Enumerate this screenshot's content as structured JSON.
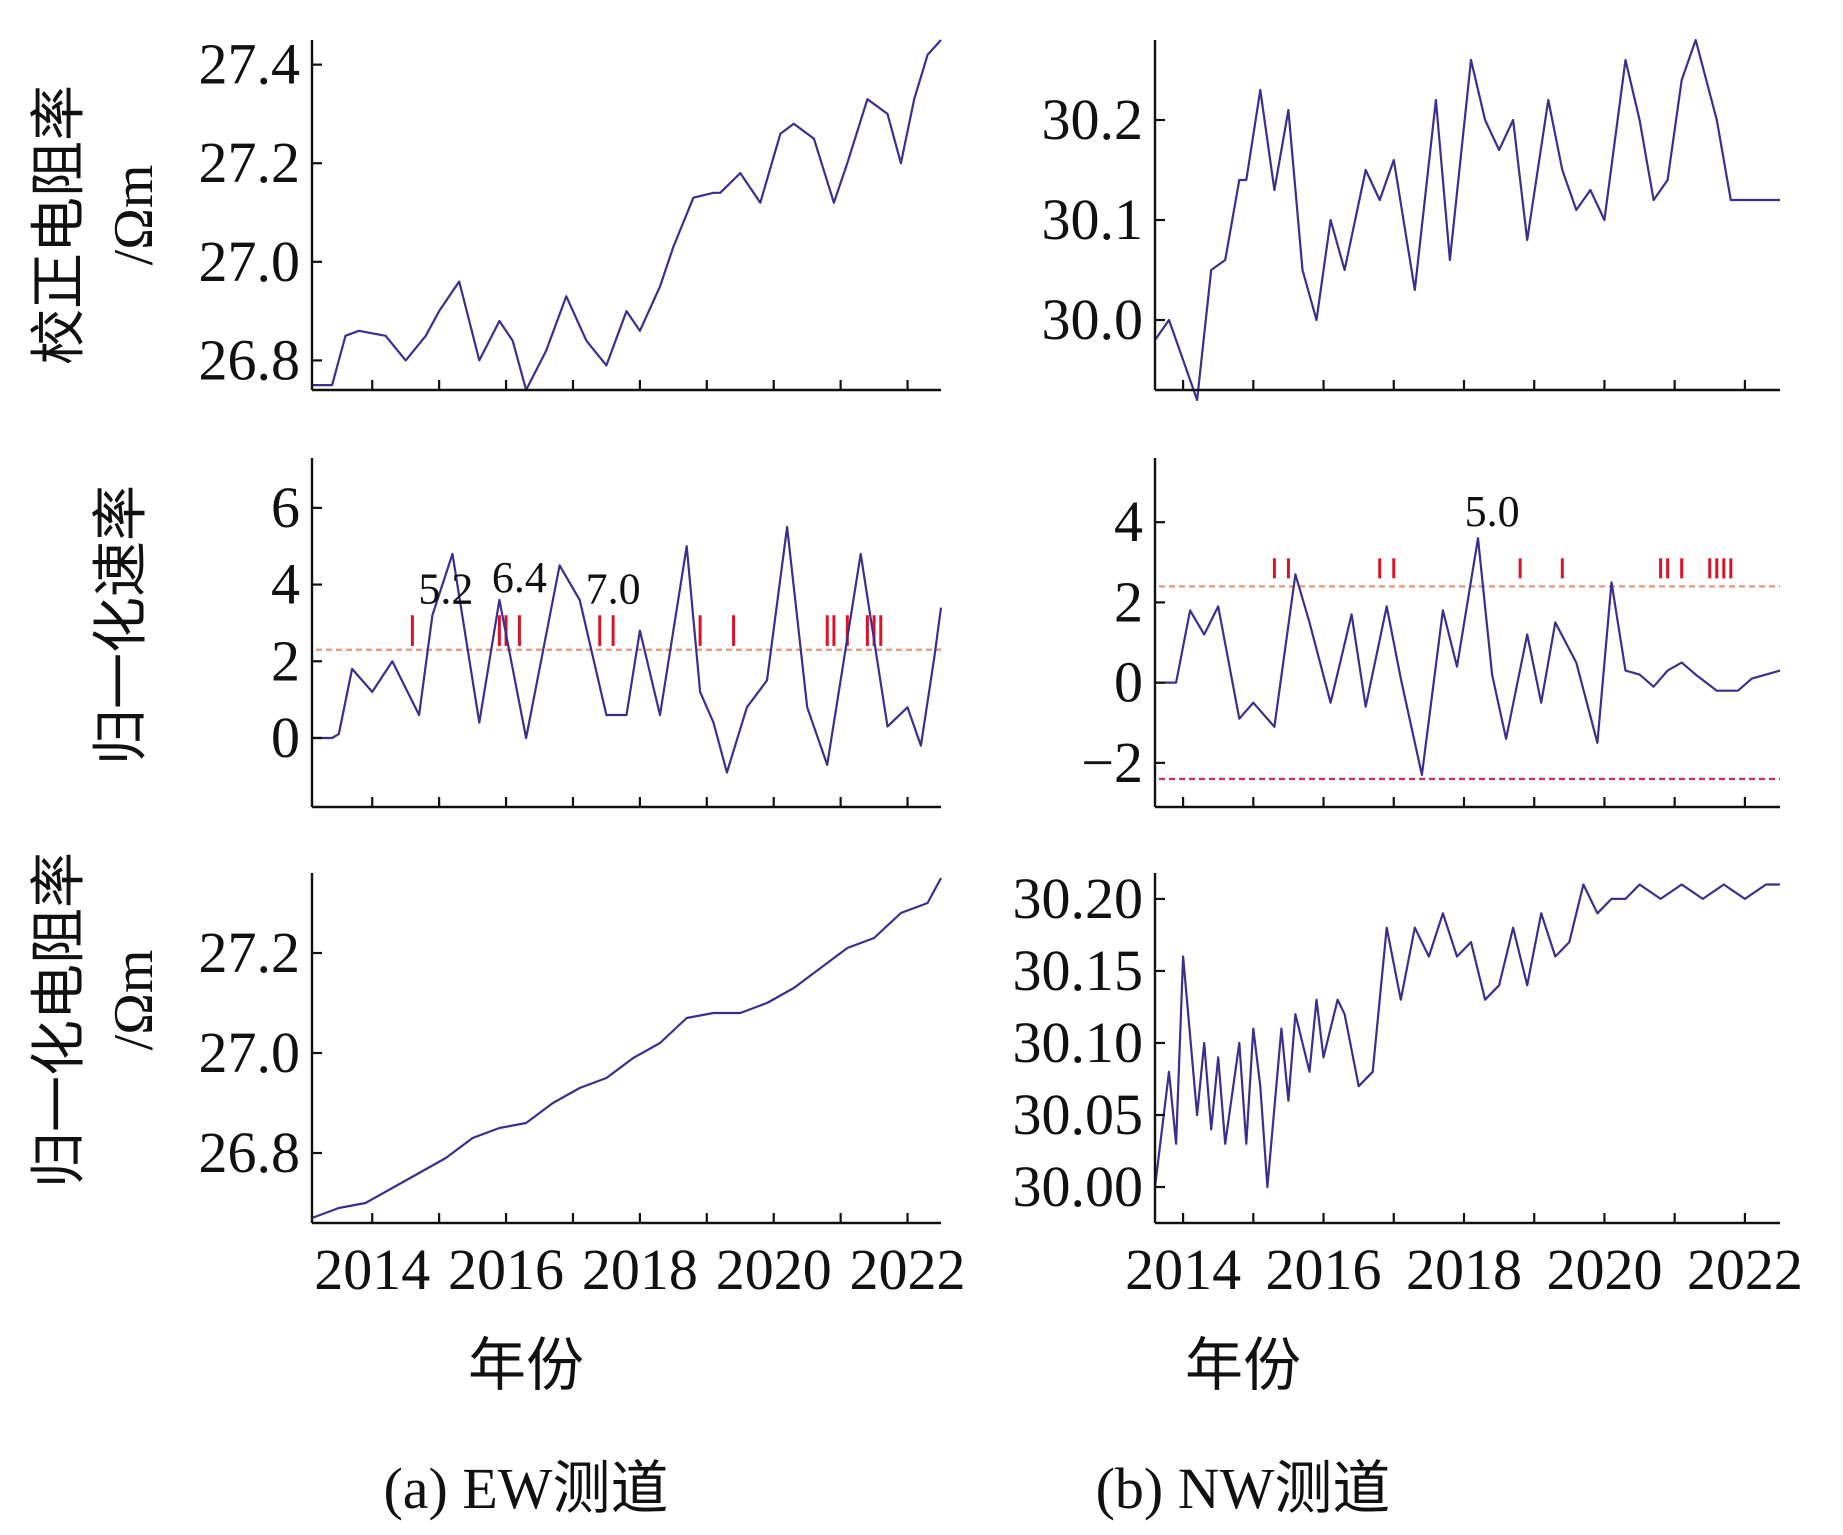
{
  "colors": {
    "series": "#3a2f8c",
    "threshold_upper": "#e3a08a",
    "threshold_lower": "#c8345c",
    "marker": "#d9142a",
    "axis": "#111111"
  },
  "columns": [
    {
      "id": "ew",
      "caption": "(a) EW测道",
      "xlabel": "年份"
    },
    {
      "id": "nw",
      "caption": "(b) NW测道",
      "xlabel": "年份"
    }
  ],
  "row_labels": [
    {
      "lines": [
        "校正电阻率",
        "/Ωm"
      ]
    },
    {
      "lines": [
        "归一化速率"
      ]
    },
    {
      "lines": [
        "归一化电阻率",
        "/Ωm"
      ]
    }
  ],
  "chart_data": [
    {
      "id": "ew-corrected",
      "type": "line",
      "xlim": [
        2013.1,
        2022.5
      ],
      "x_ticks": [
        2014,
        2016,
        2018,
        2020,
        2022
      ],
      "ylim": [
        26.74,
        27.45
      ],
      "y_ticks": [
        26.8,
        27.0,
        27.2,
        27.4
      ],
      "y_tick_labels": [
        "26.8",
        "27.0",
        "27.2",
        "27.4"
      ],
      "series": [
        {
          "x": [
            2013.1,
            2013.4,
            2013.6,
            2013.8,
            2014.2,
            2014.5,
            2014.8,
            2015.0,
            2015.3,
            2015.6,
            2015.9,
            2016.1,
            2016.3,
            2016.6,
            2016.9,
            2017.2,
            2017.5,
            2017.8,
            2018.0,
            2018.3,
            2018.5,
            2018.8,
            2019.1,
            2019.2,
            2019.5,
            2019.8,
            2020.1,
            2020.3,
            2020.6,
            2020.9,
            2021.1,
            2021.4,
            2021.7,
            2021.9,
            2022.1,
            2022.3,
            2022.5
          ],
          "y": [
            26.75,
            26.75,
            26.85,
            26.86,
            26.85,
            26.8,
            26.85,
            26.9,
            26.96,
            26.8,
            26.88,
            26.84,
            26.74,
            26.82,
            26.93,
            26.84,
            26.79,
            26.9,
            26.86,
            26.95,
            27.03,
            27.13,
            27.14,
            27.14,
            27.18,
            27.12,
            27.26,
            27.28,
            27.25,
            27.12,
            27.2,
            27.33,
            27.3,
            27.2,
            27.33,
            27.42,
            27.45
          ]
        }
      ],
      "thresholds": [],
      "markers": [],
      "annotations": []
    },
    {
      "id": "ew-rate",
      "type": "line",
      "xlim": [
        2013.1,
        2022.5
      ],
      "x_ticks": [
        2014,
        2016,
        2018,
        2020,
        2022
      ],
      "ylim": [
        -1.8,
        7.3
      ],
      "y_ticks": [
        0,
        2,
        4,
        6
      ],
      "y_tick_labels": [
        "0",
        "2",
        "4",
        "6"
      ],
      "series": [
        {
          "x": [
            2013.1,
            2013.4,
            2013.5,
            2013.7,
            2014.0,
            2014.3,
            2014.7,
            2014.9,
            2015.2,
            2015.6,
            2015.9,
            2016.3,
            2016.8,
            2017.1,
            2017.5,
            2017.8,
            2018.0,
            2018.3,
            2018.7,
            2018.9,
            2019.1,
            2019.3,
            2019.6,
            2019.9,
            2020.2,
            2020.5,
            2020.8,
            2021.1,
            2021.3,
            2021.7,
            2022.0,
            2022.2,
            2022.4,
            2022.5
          ],
          "y": [
            0,
            0,
            0.1,
            1.8,
            1.2,
            2.0,
            0.6,
            3.2,
            4.8,
            0.4,
            3.6,
            0,
            4.5,
            3.6,
            0.6,
            0.6,
            2.8,
            0.6,
            5.0,
            1.2,
            0.4,
            -0.9,
            0.8,
            1.5,
            5.5,
            0.8,
            -0.7,
            2.6,
            4.8,
            0.3,
            0.8,
            -0.2,
            2.1,
            3.4
          ]
        }
      ],
      "thresholds": [
        {
          "y": 2.3,
          "color": "#e3a08a"
        }
      ],
      "markers": {
        "y_base": 2.4,
        "y_top": 3.2,
        "x": [
          2014.6,
          2015.9,
          2016.0,
          2016.2,
          2017.4,
          2017.6,
          2018.9,
          2019.4,
          2020.8,
          2020.9,
          2021.1,
          2021.4,
          2021.5,
          2021.6
        ]
      },
      "annotations": [
        {
          "text": "5.2",
          "x": 2015.1,
          "y": 3.5
        },
        {
          "text": "6.4",
          "x": 2016.2,
          "y": 3.8
        },
        {
          "text": "7.0",
          "x": 2017.6,
          "y": 3.5
        }
      ]
    },
    {
      "id": "ew-normalized",
      "type": "line",
      "xlim": [
        2013.1,
        2022.5
      ],
      "x_ticks": [
        2014,
        2016,
        2018,
        2020,
        2022
      ],
      "ylim": [
        26.66,
        27.36
      ],
      "y_ticks": [
        26.8,
        27.0,
        27.2
      ],
      "y_tick_labels": [
        "26.8",
        "27.0",
        "27.2"
      ],
      "series": [
        {
          "x": [
            2013.1,
            2013.5,
            2013.9,
            2014.3,
            2014.7,
            2015.1,
            2015.5,
            2015.9,
            2016.3,
            2016.7,
            2017.1,
            2017.5,
            2017.9,
            2018.3,
            2018.7,
            2019.1,
            2019.5,
            2019.9,
            2020.3,
            2020.7,
            2021.1,
            2021.5,
            2021.9,
            2022.3,
            2022.5
          ],
          "y": [
            26.67,
            26.69,
            26.7,
            26.73,
            26.76,
            26.79,
            26.83,
            26.85,
            26.86,
            26.9,
            26.93,
            26.95,
            26.99,
            27.02,
            27.07,
            27.08,
            27.08,
            27.1,
            27.13,
            27.17,
            27.21,
            27.23,
            27.28,
            27.3,
            27.35
          ]
        }
      ],
      "thresholds": [],
      "markers": [],
      "annotations": []
    },
    {
      "id": "nw-corrected",
      "type": "line",
      "xlim": [
        2013.6,
        2022.5
      ],
      "x_ticks": [
        2014,
        2016,
        2018,
        2020,
        2022
      ],
      "ylim": [
        29.93,
        30.28
      ],
      "y_ticks": [
        30.0,
        30.1,
        30.2
      ],
      "y_tick_labels": [
        "30.0",
        "30.1",
        "30.2"
      ],
      "series": [
        {
          "x": [
            2013.6,
            2013.8,
            2014.0,
            2014.1,
            2014.2,
            2014.4,
            2014.6,
            2014.8,
            2014.9,
            2015.1,
            2015.3,
            2015.5,
            2015.7,
            2015.9,
            2016.1,
            2016.3,
            2016.6,
            2016.8,
            2017.0,
            2017.3,
            2017.6,
            2017.8,
            2018.1,
            2018.3,
            2018.5,
            2018.7,
            2018.9,
            2019.2,
            2019.4,
            2019.6,
            2019.8,
            2020.0,
            2020.3,
            2020.5,
            2020.7,
            2020.9,
            2021.1,
            2021.3,
            2021.6,
            2021.8,
            2022.0,
            2022.2,
            2022.4,
            2022.5
          ],
          "y": [
            29.98,
            30.0,
            29.96,
            29.94,
            29.92,
            30.05,
            30.06,
            30.14,
            30.14,
            30.23,
            30.13,
            30.21,
            30.05,
            30.0,
            30.1,
            30.05,
            30.15,
            30.12,
            30.16,
            30.03,
            30.22,
            30.06,
            30.26,
            30.2,
            30.17,
            30.2,
            30.08,
            30.22,
            30.15,
            30.11,
            30.13,
            30.1,
            30.26,
            30.2,
            30.12,
            30.14,
            30.24,
            30.28,
            30.2,
            30.12,
            30.12,
            30.12,
            30.12,
            30.12
          ]
        }
      ],
      "thresholds": [],
      "markers": [],
      "annotations": []
    },
    {
      "id": "nw-rate",
      "type": "line",
      "xlim": [
        2013.6,
        2022.5
      ],
      "x_ticks": [
        2014,
        2016,
        2018,
        2020,
        2022
      ],
      "ylim": [
        -3.1,
        5.6
      ],
      "y_ticks": [
        -2,
        0,
        2,
        4
      ],
      "y_tick_labels": [
        "−2",
        "0",
        "2",
        "4"
      ],
      "series": [
        {
          "x": [
            2013.6,
            2013.9,
            2014.1,
            2014.3,
            2014.5,
            2014.8,
            2015.0,
            2015.3,
            2015.6,
            2015.8,
            2016.1,
            2016.4,
            2016.6,
            2016.9,
            2017.1,
            2017.4,
            2017.7,
            2017.9,
            2018.2,
            2018.4,
            2018.6,
            2018.9,
            2019.1,
            2019.3,
            2019.6,
            2019.9,
            2020.1,
            2020.3,
            2020.5,
            2020.7,
            2020.9,
            2021.1,
            2021.3,
            2021.6,
            2021.9,
            2022.1,
            2022.3,
            2022.5
          ],
          "y": [
            0,
            0,
            1.8,
            1.2,
            1.9,
            -0.9,
            -0.5,
            -1.1,
            2.7,
            1.5,
            -0.5,
            1.7,
            -0.6,
            1.9,
            0.1,
            -2.3,
            1.8,
            0.4,
            3.6,
            0.2,
            -1.4,
            1.2,
            -0.5,
            1.5,
            0.5,
            -1.5,
            2.5,
            0.3,
            0.2,
            -0.1,
            0.3,
            0.5,
            0.2,
            -0.2,
            -0.2,
            0.1,
            0.2,
            0.3
          ]
        }
      ],
      "thresholds": [
        {
          "y": 2.4,
          "color": "#e3a08a"
        },
        {
          "y": -2.4,
          "color": "#c8345c"
        }
      ],
      "markers": {
        "y_base": 2.6,
        "y_top": 3.1,
        "x": [
          2015.3,
          2015.5,
          2016.8,
          2017.0,
          2018.8,
          2019.4,
          2020.8,
          2020.9,
          2021.1,
          2021.5,
          2021.6,
          2021.7,
          2021.8
        ]
      },
      "annotations": [
        {
          "text": "5.0",
          "x": 2018.4,
          "y": 3.9
        }
      ]
    },
    {
      "id": "nw-normalized",
      "type": "line",
      "xlim": [
        2013.6,
        2022.5
      ],
      "x_ticks": [
        2014,
        2016,
        2018,
        2020,
        2022
      ],
      "ylim": [
        29.975,
        30.218
      ],
      "y_ticks": [
        30.0,
        30.05,
        30.1,
        30.15,
        30.2
      ],
      "y_tick_labels": [
        "30.00",
        "30.05",
        "30.10",
        "30.15",
        "30.20"
      ],
      "series": [
        {
          "x": [
            2013.6,
            2013.8,
            2013.9,
            2014.0,
            2014.2,
            2014.3,
            2014.4,
            2014.5,
            2014.6,
            2014.8,
            2014.9,
            2015.0,
            2015.1,
            2015.2,
            2015.4,
            2015.5,
            2015.6,
            2015.8,
            2015.9,
            2016.0,
            2016.2,
            2016.3,
            2016.5,
            2016.7,
            2016.9,
            2017.1,
            2017.3,
            2017.5,
            2017.7,
            2017.9,
            2018.1,
            2018.3,
            2018.5,
            2018.7,
            2018.9,
            2019.1,
            2019.3,
            2019.5,
            2019.7,
            2019.9,
            2020.1,
            2020.3,
            2020.5,
            2020.8,
            2021.1,
            2021.4,
            2021.7,
            2022.0,
            2022.3,
            2022.5
          ],
          "y": [
            30.0,
            30.08,
            30.03,
            30.16,
            30.05,
            30.1,
            30.04,
            30.09,
            30.03,
            30.1,
            30.03,
            30.11,
            30.07,
            30.0,
            30.11,
            30.06,
            30.12,
            30.08,
            30.13,
            30.09,
            30.13,
            30.12,
            30.07,
            30.08,
            30.18,
            30.13,
            30.18,
            30.16,
            30.19,
            30.16,
            30.17,
            30.13,
            30.14,
            30.18,
            30.14,
            30.19,
            30.16,
            30.17,
            30.21,
            30.19,
            30.2,
            30.2,
            30.21,
            30.2,
            30.21,
            30.2,
            30.21,
            30.2,
            30.21,
            30.21
          ]
        }
      ],
      "thresholds": [],
      "markers": [],
      "annotations": []
    }
  ]
}
